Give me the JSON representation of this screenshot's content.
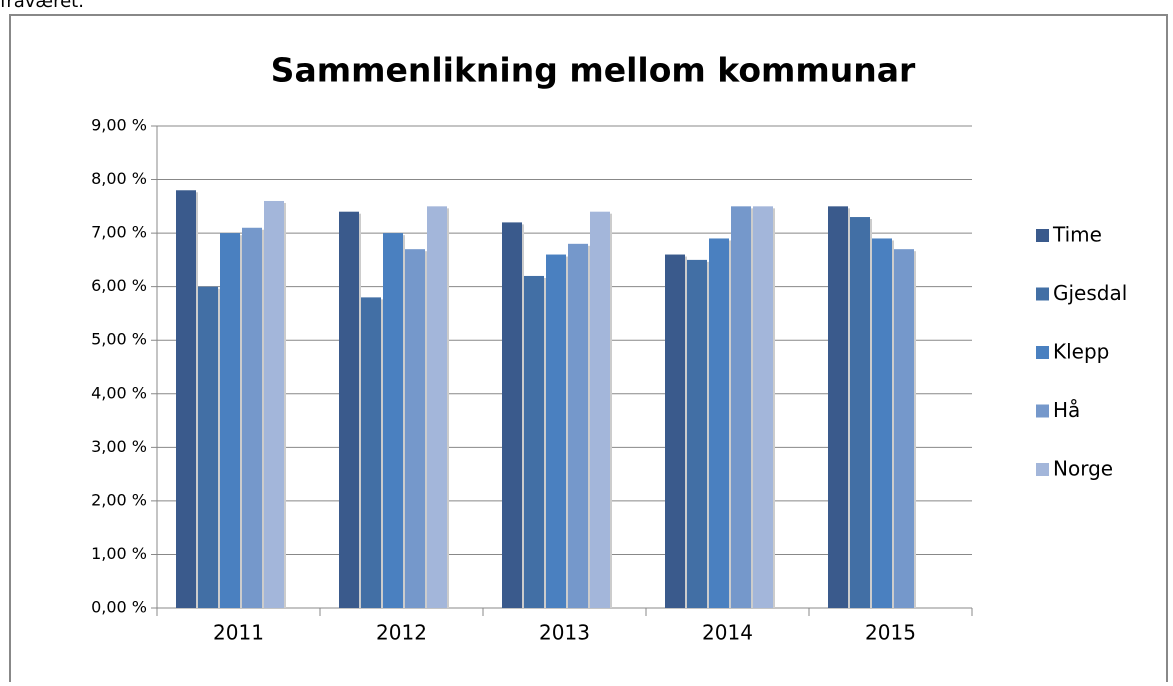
{
  "caption": "fraværet.",
  "chart_data": {
    "type": "bar",
    "title": "Sammenlikning mellom kommunar",
    "categories": [
      "2011",
      "2012",
      "2013",
      "2014",
      "2015"
    ],
    "series": [
      {
        "name": "Time",
        "color": "#3a5a8c",
        "values": [
          7.8,
          7.4,
          7.2,
          6.6,
          7.5
        ]
      },
      {
        "name": "Gjesdal",
        "color": "#426fa5",
        "values": [
          6.0,
          5.8,
          6.2,
          6.5,
          7.3
        ]
      },
      {
        "name": "Klepp",
        "color": "#4a80c0",
        "values": [
          7.0,
          7.0,
          6.6,
          6.9,
          6.9
        ]
      },
      {
        "name": "Hå",
        "color": "#7598cb",
        "values": [
          7.1,
          6.7,
          6.8,
          7.5,
          6.7
        ]
      },
      {
        "name": "Norge",
        "color": "#a3b6da",
        "values": [
          7.6,
          7.5,
          7.4,
          7.5,
          null
        ]
      }
    ],
    "ylim": [
      0,
      9
    ],
    "yticks": [
      {
        "value": 0,
        "label": "0,00 %"
      },
      {
        "value": 1,
        "label": "1,00 %"
      },
      {
        "value": 2,
        "label": "2,00 %"
      },
      {
        "value": 3,
        "label": "3,00 %"
      },
      {
        "value": 4,
        "label": "4,00 %"
      },
      {
        "value": 5,
        "label": "5,00 %"
      },
      {
        "value": 6,
        "label": "6,00 %"
      },
      {
        "value": 7,
        "label": "7,00 %"
      },
      {
        "value": 8,
        "label": "8,00 %"
      },
      {
        "value": 9,
        "label": "9,00 %"
      }
    ],
    "grid": true,
    "legend": "right"
  }
}
